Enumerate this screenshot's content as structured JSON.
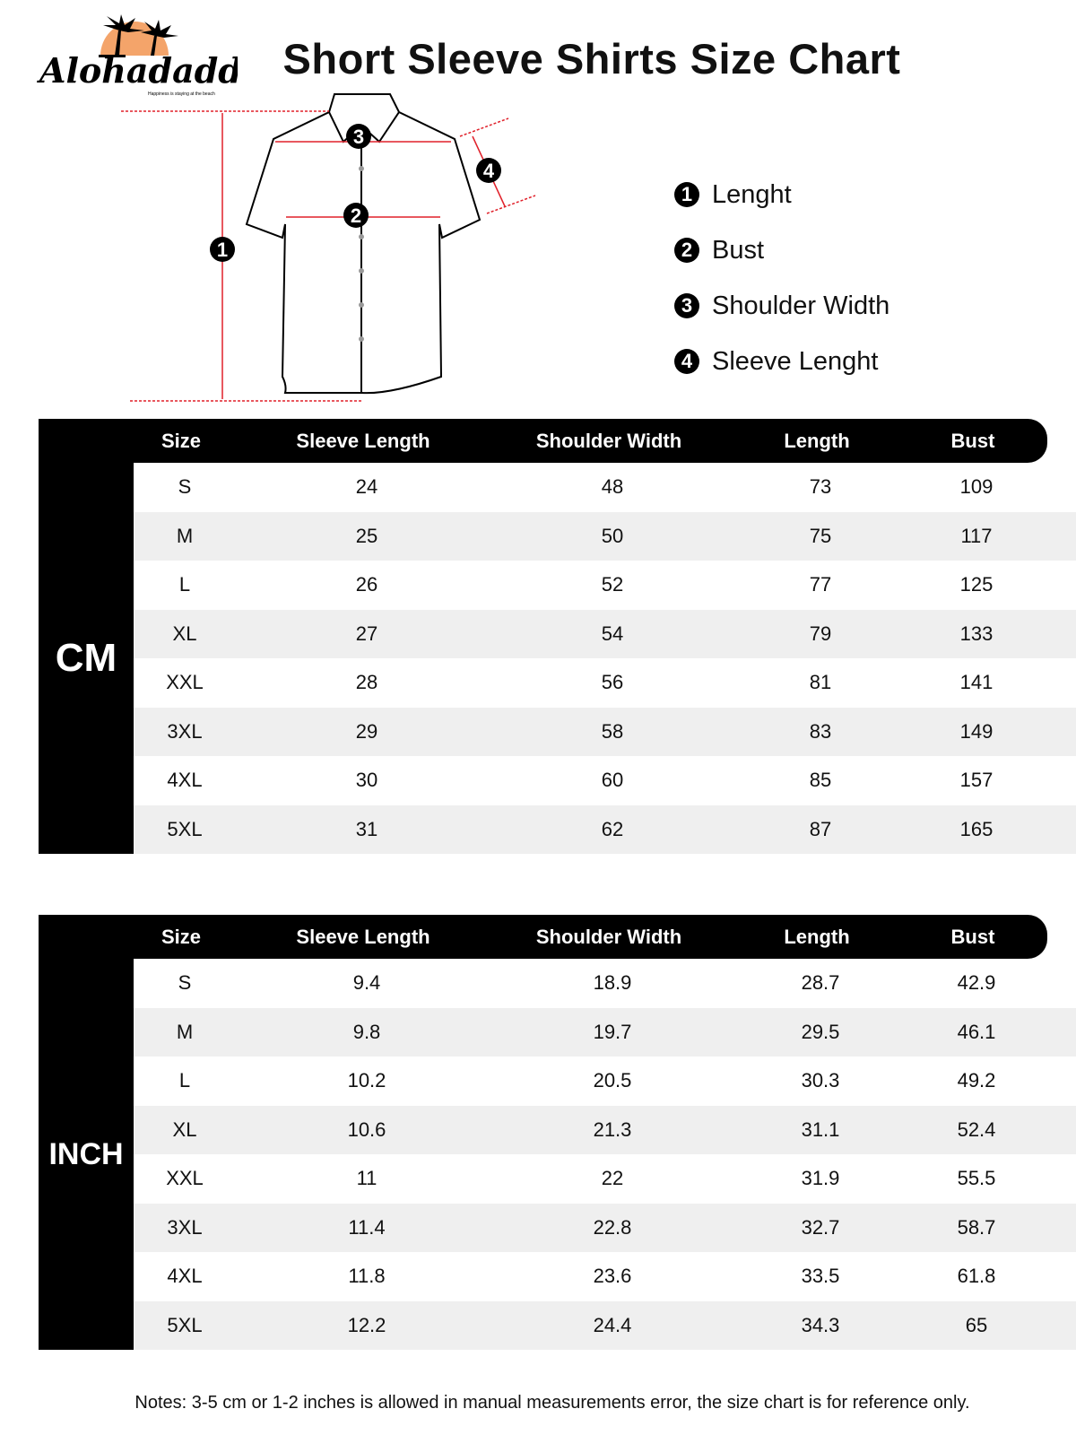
{
  "brand": {
    "name": "Alohadaddy",
    "tagline": "Happiness is staying at the beach",
    "accent": "#f4a46a"
  },
  "title": "Short Sleeve Shirts Size Chart",
  "legend": [
    {
      "num": "1",
      "label": "Lenght"
    },
    {
      "num": "2",
      "label": "Bust"
    },
    {
      "num": "3",
      "label": "Shoulder Width"
    },
    {
      "num": "4",
      "label": "Sleeve Lenght"
    }
  ],
  "columns": [
    "Size",
    "Sleeve Length",
    "Shoulder Width",
    "Length",
    "Bust"
  ],
  "tables": [
    {
      "unit": "CM",
      "rows": [
        [
          "S",
          "24",
          "48",
          "73",
          "109"
        ],
        [
          "M",
          "25",
          "50",
          "75",
          "117"
        ],
        [
          "L",
          "26",
          "52",
          "77",
          "125"
        ],
        [
          "XL",
          "27",
          "54",
          "79",
          "133"
        ],
        [
          "XXL",
          "28",
          "56",
          "81",
          "141"
        ],
        [
          "3XL",
          "29",
          "58",
          "83",
          "149"
        ],
        [
          "4XL",
          "30",
          "60",
          "85",
          "157"
        ],
        [
          "5XL",
          "31",
          "62",
          "87",
          "165"
        ]
      ]
    },
    {
      "unit": "INCH",
      "rows": [
        [
          "S",
          "9.4",
          "18.9",
          "28.7",
          "42.9"
        ],
        [
          "M",
          "9.8",
          "19.7",
          "29.5",
          "46.1"
        ],
        [
          "L",
          "10.2",
          "20.5",
          "30.3",
          "49.2"
        ],
        [
          "XL",
          "10.6",
          "21.3",
          "31.1",
          "52.4"
        ],
        [
          "XXL",
          "11",
          "22",
          "31.9",
          "55.5"
        ],
        [
          "3XL",
          "11.4",
          "22.8",
          "32.7",
          "58.7"
        ],
        [
          "4XL",
          "11.8",
          "23.6",
          "33.5",
          "61.8"
        ],
        [
          "5XL",
          "12.2",
          "24.4",
          "34.3",
          "65"
        ]
      ]
    }
  ],
  "note": "Notes: 3-5 cm or 1-2 inches is allowed in manual measurements error, the size chart is for reference only."
}
